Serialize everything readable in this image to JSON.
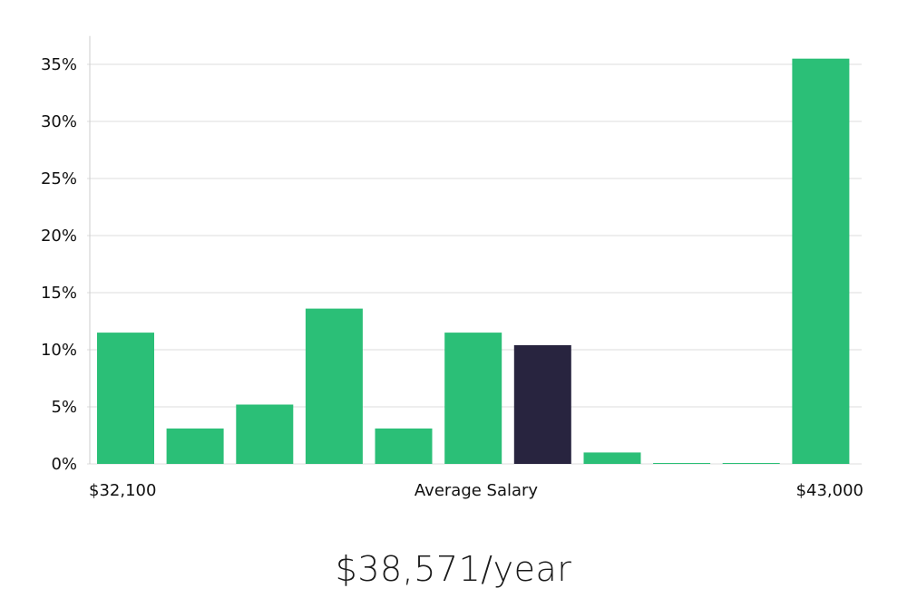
{
  "chart_data": {
    "type": "bar",
    "categories": [
      "",
      "",
      "",
      "",
      "",
      "",
      "",
      "",
      "",
      "",
      ""
    ],
    "values": [
      11.5,
      3.1,
      5.2,
      13.6,
      3.1,
      11.5,
      10.4,
      1.0,
      0.05,
      0.05,
      35.5
    ],
    "highlight_index": 6,
    "colors": {
      "bar": "#2bbf77",
      "highlight": "#28243f",
      "grid": "#dcdcdc",
      "axis": "#cccccc"
    },
    "y_ticks": [
      "0%",
      "5%",
      "10%",
      "15%",
      "20%",
      "25%",
      "30%",
      "35%"
    ],
    "ylim": [
      0,
      37
    ],
    "grid": true,
    "x_labels": {
      "left": "$32,100",
      "center": "Average Salary",
      "right": "$43,000"
    }
  },
  "summary": {
    "value": "$38,571/year"
  }
}
